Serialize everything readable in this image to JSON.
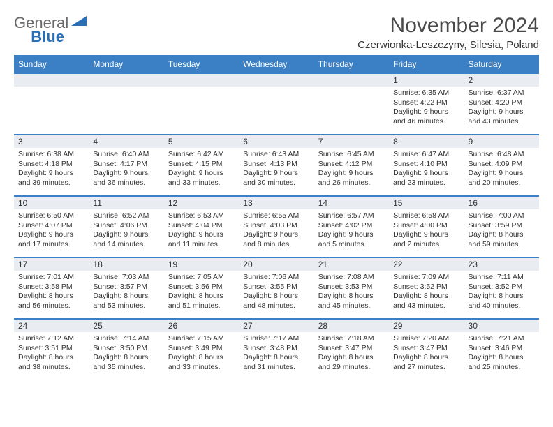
{
  "brand": {
    "part1": "General",
    "part2": "Blue",
    "triangle_color": "#2a6fb5"
  },
  "title": "November 2024",
  "location": "Czerwionka-Leszczyny, Silesia, Poland",
  "header_bg": "#3b7fc4",
  "daynum_bg": "#e9edf1",
  "day_headers": [
    "Sunday",
    "Monday",
    "Tuesday",
    "Wednesday",
    "Thursday",
    "Friday",
    "Saturday"
  ],
  "weeks": [
    [
      null,
      null,
      null,
      null,
      null,
      {
        "n": "1",
        "sr": "Sunrise: 6:35 AM",
        "ss": "Sunset: 4:22 PM",
        "dl": "Daylight: 9 hours and 46 minutes."
      },
      {
        "n": "2",
        "sr": "Sunrise: 6:37 AM",
        "ss": "Sunset: 4:20 PM",
        "dl": "Daylight: 9 hours and 43 minutes."
      }
    ],
    [
      {
        "n": "3",
        "sr": "Sunrise: 6:38 AM",
        "ss": "Sunset: 4:18 PM",
        "dl": "Daylight: 9 hours and 39 minutes."
      },
      {
        "n": "4",
        "sr": "Sunrise: 6:40 AM",
        "ss": "Sunset: 4:17 PM",
        "dl": "Daylight: 9 hours and 36 minutes."
      },
      {
        "n": "5",
        "sr": "Sunrise: 6:42 AM",
        "ss": "Sunset: 4:15 PM",
        "dl": "Daylight: 9 hours and 33 minutes."
      },
      {
        "n": "6",
        "sr": "Sunrise: 6:43 AM",
        "ss": "Sunset: 4:13 PM",
        "dl": "Daylight: 9 hours and 30 minutes."
      },
      {
        "n": "7",
        "sr": "Sunrise: 6:45 AM",
        "ss": "Sunset: 4:12 PM",
        "dl": "Daylight: 9 hours and 26 minutes."
      },
      {
        "n": "8",
        "sr": "Sunrise: 6:47 AM",
        "ss": "Sunset: 4:10 PM",
        "dl": "Daylight: 9 hours and 23 minutes."
      },
      {
        "n": "9",
        "sr": "Sunrise: 6:48 AM",
        "ss": "Sunset: 4:09 PM",
        "dl": "Daylight: 9 hours and 20 minutes."
      }
    ],
    [
      {
        "n": "10",
        "sr": "Sunrise: 6:50 AM",
        "ss": "Sunset: 4:07 PM",
        "dl": "Daylight: 9 hours and 17 minutes."
      },
      {
        "n": "11",
        "sr": "Sunrise: 6:52 AM",
        "ss": "Sunset: 4:06 PM",
        "dl": "Daylight: 9 hours and 14 minutes."
      },
      {
        "n": "12",
        "sr": "Sunrise: 6:53 AM",
        "ss": "Sunset: 4:04 PM",
        "dl": "Daylight: 9 hours and 11 minutes."
      },
      {
        "n": "13",
        "sr": "Sunrise: 6:55 AM",
        "ss": "Sunset: 4:03 PM",
        "dl": "Daylight: 9 hours and 8 minutes."
      },
      {
        "n": "14",
        "sr": "Sunrise: 6:57 AM",
        "ss": "Sunset: 4:02 PM",
        "dl": "Daylight: 9 hours and 5 minutes."
      },
      {
        "n": "15",
        "sr": "Sunrise: 6:58 AM",
        "ss": "Sunset: 4:00 PM",
        "dl": "Daylight: 9 hours and 2 minutes."
      },
      {
        "n": "16",
        "sr": "Sunrise: 7:00 AM",
        "ss": "Sunset: 3:59 PM",
        "dl": "Daylight: 8 hours and 59 minutes."
      }
    ],
    [
      {
        "n": "17",
        "sr": "Sunrise: 7:01 AM",
        "ss": "Sunset: 3:58 PM",
        "dl": "Daylight: 8 hours and 56 minutes."
      },
      {
        "n": "18",
        "sr": "Sunrise: 7:03 AM",
        "ss": "Sunset: 3:57 PM",
        "dl": "Daylight: 8 hours and 53 minutes."
      },
      {
        "n": "19",
        "sr": "Sunrise: 7:05 AM",
        "ss": "Sunset: 3:56 PM",
        "dl": "Daylight: 8 hours and 51 minutes."
      },
      {
        "n": "20",
        "sr": "Sunrise: 7:06 AM",
        "ss": "Sunset: 3:55 PM",
        "dl": "Daylight: 8 hours and 48 minutes."
      },
      {
        "n": "21",
        "sr": "Sunrise: 7:08 AM",
        "ss": "Sunset: 3:53 PM",
        "dl": "Daylight: 8 hours and 45 minutes."
      },
      {
        "n": "22",
        "sr": "Sunrise: 7:09 AM",
        "ss": "Sunset: 3:52 PM",
        "dl": "Daylight: 8 hours and 43 minutes."
      },
      {
        "n": "23",
        "sr": "Sunrise: 7:11 AM",
        "ss": "Sunset: 3:52 PM",
        "dl": "Daylight: 8 hours and 40 minutes."
      }
    ],
    [
      {
        "n": "24",
        "sr": "Sunrise: 7:12 AM",
        "ss": "Sunset: 3:51 PM",
        "dl": "Daylight: 8 hours and 38 minutes."
      },
      {
        "n": "25",
        "sr": "Sunrise: 7:14 AM",
        "ss": "Sunset: 3:50 PM",
        "dl": "Daylight: 8 hours and 35 minutes."
      },
      {
        "n": "26",
        "sr": "Sunrise: 7:15 AM",
        "ss": "Sunset: 3:49 PM",
        "dl": "Daylight: 8 hours and 33 minutes."
      },
      {
        "n": "27",
        "sr": "Sunrise: 7:17 AM",
        "ss": "Sunset: 3:48 PM",
        "dl": "Daylight: 8 hours and 31 minutes."
      },
      {
        "n": "28",
        "sr": "Sunrise: 7:18 AM",
        "ss": "Sunset: 3:47 PM",
        "dl": "Daylight: 8 hours and 29 minutes."
      },
      {
        "n": "29",
        "sr": "Sunrise: 7:20 AM",
        "ss": "Sunset: 3:47 PM",
        "dl": "Daylight: 8 hours and 27 minutes."
      },
      {
        "n": "30",
        "sr": "Sunrise: 7:21 AM",
        "ss": "Sunset: 3:46 PM",
        "dl": "Daylight: 8 hours and 25 minutes."
      }
    ]
  ]
}
